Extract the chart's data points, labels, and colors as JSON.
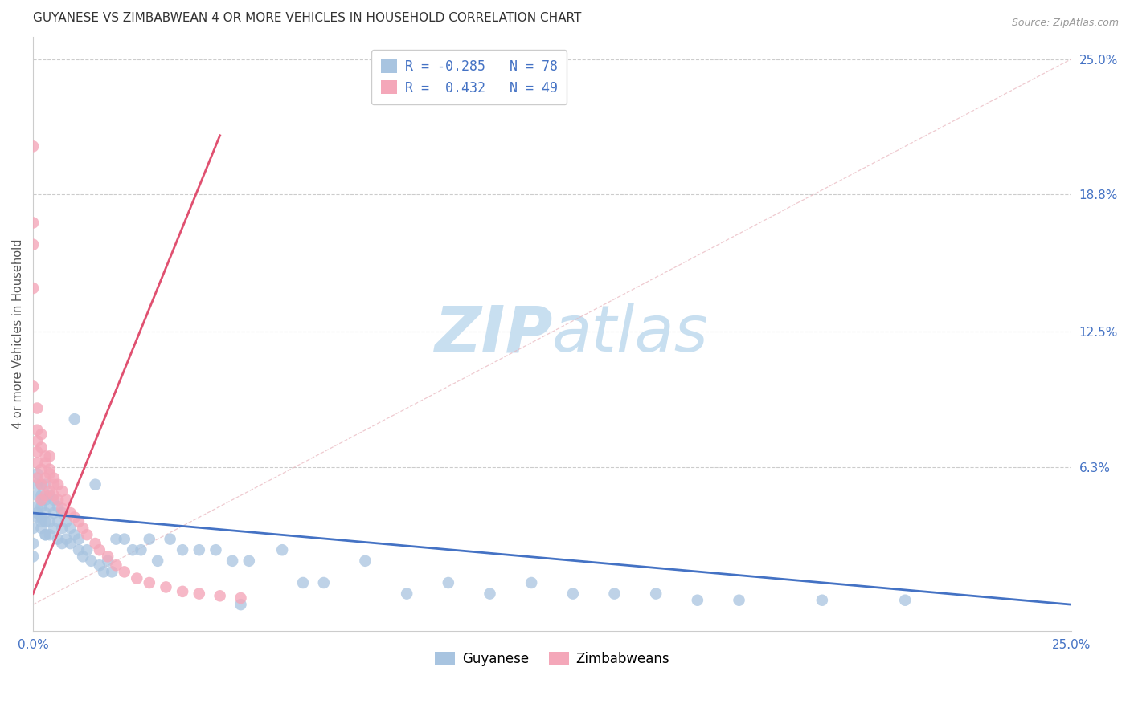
{
  "title": "GUYANESE VS ZIMBABWEAN 4 OR MORE VEHICLES IN HOUSEHOLD CORRELATION CHART",
  "source": "Source: ZipAtlas.com",
  "ylabel": "4 or more Vehicles in Household",
  "xlim": [
    0.0,
    0.25
  ],
  "ylim": [
    -0.012,
    0.26
  ],
  "xtick_positions": [
    0.0,
    0.25
  ],
  "xtick_labels": [
    "0.0%",
    "25.0%"
  ],
  "ytick_positions_right": [
    0.25,
    0.188,
    0.125,
    0.063
  ],
  "ytick_labels_right": [
    "25.0%",
    "18.8%",
    "12.5%",
    "6.3%"
  ],
  "guyanese_color": "#a8c4e0",
  "zimbabwean_color": "#f4a7b9",
  "guyanese_line_color": "#4472c4",
  "zimbabwean_line_color": "#e05070",
  "diag_line_color": "#e8b4bc",
  "watermark_zip": "#c8dff0",
  "watermark_atlas": "#c8dff0",
  "legend_R_guyanese": "-0.285",
  "legend_N_guyanese": "78",
  "legend_R_zimbabwean": "0.432",
  "legend_N_zimbabwean": "49",
  "title_fontsize": 11,
  "axis_tick_color": "#4472c4",
  "ylabel_color": "#555555",
  "legend_text_color": "#4472c4",
  "source_color": "#999999",
  "guyanese_x": [
    0.001,
    0.001,
    0.001,
    0.001,
    0.002,
    0.002,
    0.002,
    0.002,
    0.002,
    0.003,
    0.003,
    0.003,
    0.003,
    0.003,
    0.004,
    0.004,
    0.004,
    0.004,
    0.005,
    0.005,
    0.005,
    0.006,
    0.006,
    0.006,
    0.007,
    0.007,
    0.007,
    0.008,
    0.008,
    0.009,
    0.009,
    0.01,
    0.01,
    0.011,
    0.011,
    0.012,
    0.013,
    0.014,
    0.015,
    0.016,
    0.017,
    0.018,
    0.019,
    0.02,
    0.022,
    0.024,
    0.026,
    0.028,
    0.03,
    0.033,
    0.036,
    0.04,
    0.044,
    0.048,
    0.052,
    0.06,
    0.065,
    0.07,
    0.08,
    0.09,
    0.1,
    0.11,
    0.12,
    0.13,
    0.14,
    0.15,
    0.16,
    0.17,
    0.19,
    0.21,
    0.0,
    0.0,
    0.0,
    0.001,
    0.001,
    0.002,
    0.003,
    0.05
  ],
  "guyanese_y": [
    0.06,
    0.05,
    0.045,
    0.04,
    0.055,
    0.05,
    0.045,
    0.04,
    0.035,
    0.055,
    0.048,
    0.042,
    0.038,
    0.032,
    0.05,
    0.045,
    0.038,
    0.032,
    0.048,
    0.042,
    0.035,
    0.045,
    0.038,
    0.03,
    0.042,
    0.035,
    0.028,
    0.038,
    0.03,
    0.035,
    0.028,
    0.085,
    0.032,
    0.025,
    0.03,
    0.022,
    0.025,
    0.02,
    0.055,
    0.018,
    0.015,
    0.02,
    0.015,
    0.03,
    0.03,
    0.025,
    0.025,
    0.03,
    0.02,
    0.03,
    0.025,
    0.025,
    0.025,
    0.02,
    0.02,
    0.025,
    0.01,
    0.01,
    0.02,
    0.005,
    0.01,
    0.005,
    0.01,
    0.005,
    0.005,
    0.005,
    0.002,
    0.002,
    0.002,
    0.002,
    0.035,
    0.028,
    0.022,
    0.055,
    0.042,
    0.038,
    0.032,
    0.0
  ],
  "zimbabwean_x": [
    0.0,
    0.0,
    0.0,
    0.0,
    0.0,
    0.001,
    0.001,
    0.001,
    0.001,
    0.002,
    0.002,
    0.002,
    0.003,
    0.003,
    0.003,
    0.004,
    0.004,
    0.005,
    0.005,
    0.006,
    0.006,
    0.007,
    0.007,
    0.008,
    0.009,
    0.01,
    0.011,
    0.012,
    0.013,
    0.015,
    0.016,
    0.018,
    0.02,
    0.022,
    0.025,
    0.028,
    0.032,
    0.036,
    0.04,
    0.045,
    0.05,
    0.001,
    0.002,
    0.003,
    0.004,
    0.005,
    0.001,
    0.002,
    0.004
  ],
  "zimbabwean_y": [
    0.1,
    0.145,
    0.175,
    0.21,
    0.165,
    0.075,
    0.07,
    0.065,
    0.058,
    0.062,
    0.055,
    0.048,
    0.065,
    0.058,
    0.05,
    0.06,
    0.052,
    0.058,
    0.05,
    0.055,
    0.048,
    0.052,
    0.044,
    0.048,
    0.042,
    0.04,
    0.038,
    0.035,
    0.032,
    0.028,
    0.025,
    0.022,
    0.018,
    0.015,
    0.012,
    0.01,
    0.008,
    0.006,
    0.005,
    0.004,
    0.003,
    0.08,
    0.072,
    0.068,
    0.062,
    0.055,
    0.09,
    0.078,
    0.068
  ],
  "guy_line_x0": 0.0,
  "guy_line_x1": 0.25,
  "guy_line_y0": 0.042,
  "guy_line_y1": 0.0,
  "zimb_line_x0": 0.0,
  "zimb_line_x1": 0.045,
  "zimb_line_y0": 0.005,
  "zimb_line_y1": 0.215
}
